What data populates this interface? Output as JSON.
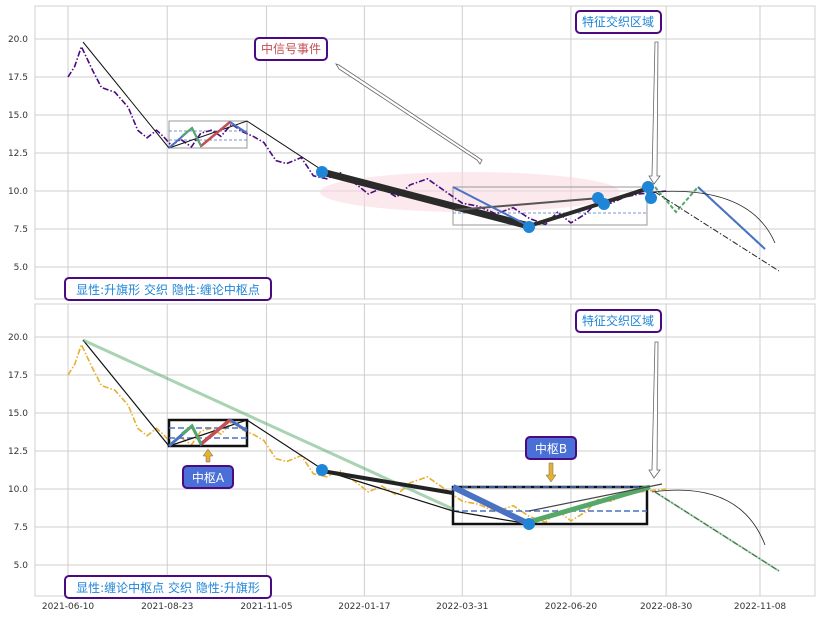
{
  "chart_data": {
    "type": "line",
    "x_ticks": [
      "2021-06-10",
      "2021-08-23",
      "2021-11-05",
      "2022-01-17",
      "2022-03-31",
      "2022-06-20",
      "2022-08-30",
      "2022-11-08"
    ],
    "y_ticks": [
      "5.0",
      "7.5",
      "10.0",
      "12.5",
      "15.0",
      "17.5",
      "20.0"
    ],
    "ylim": [
      3,
      22
    ],
    "grid": true,
    "series": [
      {
        "type": "line",
        "x": [
          "2021-06-10",
          "2021-06-15",
          "2021-06-20",
          "2021-06-28",
          "2021-07-05",
          "2021-07-15",
          "2021-07-25",
          "2021-08-01",
          "2021-08-08",
          "2021-08-15",
          "2021-08-20",
          "2021-08-26",
          "2021-09-02",
          "2021-09-10",
          "2021-09-17",
          "2021-09-25",
          "2021-10-02",
          "2021-10-10",
          "2021-10-18",
          "2021-10-26",
          "2021-11-03",
          "2021-11-12",
          "2021-11-20",
          "2021-12-01",
          "2021-12-10",
          "2021-12-20",
          "2021-12-30",
          "2022-01-10",
          "2022-01-20",
          "2022-01-30",
          "2022-02-10",
          "2022-02-20",
          "2022-03-05",
          "2022-03-18",
          "2022-03-31",
          "2022-04-12",
          "2022-04-25",
          "2022-05-08",
          "2022-05-20",
          "2022-06-01",
          "2022-06-10",
          "2022-06-20",
          "2022-07-01",
          "2022-07-10",
          "2022-07-20",
          "2022-07-30",
          "2022-08-10",
          "2022-08-20",
          "2022-08-30"
        ],
        "y": [
          17.5,
          18.2,
          19.5,
          18.0,
          16.8,
          16.5,
          15.5,
          14.0,
          13.5,
          14.0,
          13.6,
          13.0,
          13.4,
          12.9,
          13.8,
          14.0,
          13.6,
          14.4,
          13.9,
          13.6,
          13.2,
          12.0,
          11.8,
          12.2,
          11.0,
          10.8,
          11.2,
          10.5,
          9.8,
          10.2,
          9.6,
          10.4,
          10.8,
          10.0,
          9.2,
          9.0,
          8.5,
          8.9,
          8.2,
          7.8,
          8.6,
          7.9,
          8.5,
          9.3,
          9.2,
          9.6,
          9.8,
          9.9,
          10.0
        ],
        "name": ""
      }
    ]
  },
  "annotations": {
    "top_signal": "中信号事件",
    "top_feature": "特征交织区域",
    "top_legend": "显性:升旗形 交织 隐性:缠论中枢点",
    "bottom_feature": "特征交织区域",
    "bottom_center_a": "中枢A",
    "bottom_center_b": "中枢B",
    "bottom_legend": "显性:缠论中枢点 交织 隐性:升旗形"
  },
  "colors": {
    "top_price": "#4b0a82",
    "bottom_price": "#e8b030",
    "blue": "#4a72c4",
    "green": "#55a868",
    "red": "#c44e52",
    "label_purple": "#4b0a82",
    "label_blue_fill": "#4a6fd6",
    "marker": "#1f85d6",
    "ellipse": "#f7d7e0"
  }
}
